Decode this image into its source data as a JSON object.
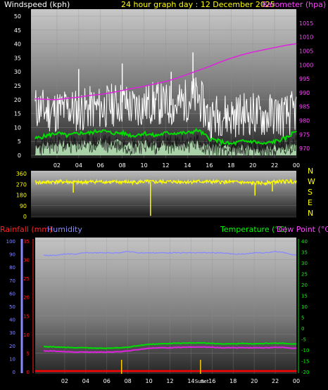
{
  "header": {
    "left": "Windspeed (kph)",
    "center": "24 hour graph day : 12 December 2025",
    "right": "Barometer (hpa)"
  },
  "x_ticks": [
    "02",
    "04",
    "06",
    "08",
    "10",
    "12",
    "14",
    "16",
    "18",
    "20",
    "22",
    "00"
  ],
  "colors": {
    "windspeed": "#ffffff",
    "gust_bar": "#ffffff",
    "avg_wind": "#00dd00",
    "wind_fill": "#bff0bf",
    "barometer": "#dd22dd",
    "direction": "#ffff00",
    "humidity": "#8888ff",
    "temperature": "#00dd00",
    "dewpoint": "#dd22dd",
    "rainfall": "#ff0000",
    "label_windspeed": "#ffffff",
    "label_barometer": "#ff44ff",
    "label_direction": "#ffff00",
    "label_rainfall": "#ff2222",
    "label_humidity": "#8888ff",
    "label_temperature": "#00ff00",
    "label_dewpoint": "#ff44ff",
    "label_date": "#ffff00"
  },
  "chart_data": [
    {
      "type": "line",
      "panel": "wind",
      "left_axis": {
        "label": "Windspeed (kph)",
        "ticks": [
          0,
          5,
          10,
          15,
          20,
          25,
          30,
          35,
          40,
          45,
          50
        ],
        "range": [
          0,
          50
        ]
      },
      "right_axis": {
        "label": "Barometer (hpa)",
        "ticks": [
          970,
          975,
          980,
          985,
          990,
          995,
          1000,
          1005,
          1010,
          1015
        ],
        "range": [
          967.5,
          1017.5
        ]
      },
      "x_hours": [
        0,
        1,
        2,
        3,
        4,
        5,
        6,
        7,
        8,
        9,
        10,
        11,
        12,
        13,
        14,
        15,
        16,
        17,
        18,
        19,
        20,
        21,
        22,
        23,
        24
      ],
      "series": [
        {
          "name": "Windspeed",
          "axis": "left",
          "values": [
            17,
            16,
            16,
            17,
            16,
            17,
            17,
            18,
            19,
            17,
            18,
            19,
            18,
            18,
            20,
            21,
            13,
            15,
            14,
            15,
            15,
            14,
            15,
            14,
            16
          ]
        },
        {
          "name": "Windspeed average",
          "axis": "left",
          "values": [
            6,
            7,
            8,
            7,
            8,
            8,
            9,
            8,
            8,
            7,
            8,
            7,
            8,
            8,
            8,
            9,
            6,
            5,
            4,
            5,
            5,
            4,
            5,
            6,
            9
          ]
        },
        {
          "name": "Barometer",
          "axis": "right",
          "values": [
            987.8,
            987.6,
            987.5,
            988,
            988.4,
            989,
            989.4,
            990,
            990.8,
            991.6,
            992.3,
            993.2,
            994,
            995.2,
            996.6,
            998,
            999.4,
            1001,
            1002.4,
            1003.6,
            1004.6,
            1005.4,
            1006.2,
            1007,
            1007.6
          ]
        }
      ],
      "peaks": [
        {
          "hour": 14.5,
          "value": 37
        },
        {
          "hour": 4,
          "value": 31
        },
        {
          "hour": 8,
          "value": 33
        },
        {
          "hour": 12.5,
          "value": 30
        }
      ]
    },
    {
      "type": "line",
      "panel": "direction",
      "left_axis": {
        "ticks": [
          0,
          90,
          180,
          270,
          360
        ],
        "range": [
          0,
          360
        ]
      },
      "right_axis_labels": [
        "N",
        "W",
        "S",
        "E",
        "N"
      ],
      "x_hours": [
        0,
        1,
        2,
        3,
        4,
        5,
        6,
        7,
        8,
        9,
        10,
        11,
        12,
        13,
        14,
        15,
        16,
        17,
        18,
        19,
        20,
        21,
        22,
        23,
        24
      ],
      "series": [
        {
          "name": "Wind direction",
          "values": [
            285,
            288,
            292,
            290,
            286,
            290,
            293,
            288,
            290,
            287,
            292,
            289,
            291,
            292,
            290,
            293,
            291,
            288,
            290,
            285,
            278,
            282,
            290,
            294,
            292
          ]
        }
      ],
      "dips": [
        {
          "hour": 10.6,
          "value": 5
        },
        {
          "hour": 3.5,
          "value": 200
        },
        {
          "hour": 20.2,
          "value": 175
        },
        {
          "hour": 21.8,
          "value": 210
        }
      ]
    },
    {
      "type": "line",
      "panel": "climate",
      "left_axis": {
        "label": "Humidity",
        "ticks": [
          0,
          10,
          20,
          30,
          40,
          50,
          60,
          70,
          80,
          90,
          100
        ],
        "range": [
          0,
          100
        ]
      },
      "rain_axis": {
        "label": "Rainfall (mm)",
        "ticks": [
          0,
          5,
          10,
          15,
          20,
          25,
          30,
          35
        ],
        "range": [
          0,
          35
        ]
      },
      "right_axis": {
        "label": "Temperature (°C)",
        "ticks": [
          -20,
          -15,
          -10,
          -5,
          0,
          5,
          10,
          15,
          20,
          25,
          30,
          35,
          40
        ],
        "range": [
          -20,
          40
        ]
      },
      "right_axis_2": {
        "label": "Dew Point (°C)"
      },
      "x_hours": [
        0,
        1,
        2,
        3,
        4,
        5,
        6,
        7,
        8,
        9,
        10,
        11,
        12,
        13,
        14,
        15,
        16,
        17,
        18,
        19,
        20,
        21,
        22,
        23,
        24
      ],
      "series": [
        {
          "name": "Humidity",
          "axis": "left",
          "values": [
            89,
            89,
            90,
            90,
            91,
            91,
            91,
            91,
            92,
            91,
            91,
            91,
            91,
            91,
            91,
            91,
            91,
            91,
            90,
            90,
            91,
            91,
            92,
            91,
            89
          ]
        },
        {
          "name": "Temperature",
          "axis": "right",
          "values": [
            -8.5,
            -8.6,
            -8.8,
            -9,
            -9,
            -9.2,
            -9.2,
            -9,
            -8.8,
            -8,
            -7.4,
            -7.2,
            -7,
            -6.9,
            -6.8,
            -6.8,
            -7,
            -7.2,
            -7.2,
            -7,
            -7.2,
            -7,
            -6.9,
            -7,
            -7.3
          ]
        },
        {
          "name": "Dew Point",
          "axis": "right",
          "values": [
            -10.5,
            -10.5,
            -10.8,
            -11,
            -11,
            -11,
            -11,
            -10.8,
            -10.5,
            -9.8,
            -9.2,
            -9,
            -9,
            -8.8,
            -8.7,
            -8.7,
            -8.8,
            -9,
            -9,
            -9,
            -9,
            -9,
            -8.8,
            -8.9,
            -9.3
          ]
        },
        {
          "name": "Rainfall",
          "axis": "rain",
          "values": [
            0,
            0,
            0,
            0,
            0,
            0,
            0,
            0,
            0,
            0,
            0,
            0,
            0,
            0,
            0,
            0,
            0,
            0,
            0,
            0,
            0,
            0,
            0,
            0,
            0
          ]
        }
      ],
      "markers": [
        {
          "label": "Sun",
          "hour": 14.8
        },
        {
          "label": "Set",
          "hour": 15.3
        }
      ],
      "yellow_ticks_hours": [
        7.4,
        14.9
      ]
    }
  ],
  "panel3_labels": {
    "rainfall": "Rainfall (mm)",
    "humidity": "Humidity",
    "temperature": "Temperature (°C)",
    "dewpoint": "Dew Point (°C)"
  },
  "compass": [
    "N",
    "W",
    "S",
    "E",
    "N"
  ],
  "sun": {
    "rise_label": "Sun",
    "set_label": "Set"
  }
}
